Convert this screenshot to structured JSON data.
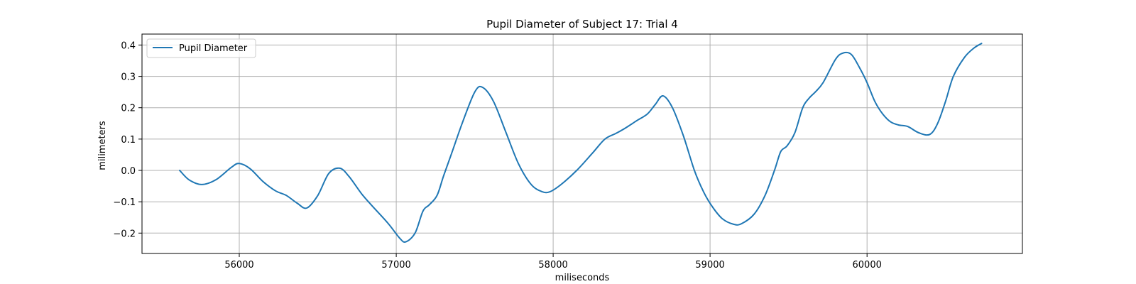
{
  "chart_data": {
    "type": "line",
    "title": "Pupil Diameter of Subject 17: Trial 4",
    "xlabel": "miliseconds",
    "ylabel": "milimeters",
    "xlim": [
      55380,
      60990
    ],
    "ylim": [
      -0.265,
      0.435
    ],
    "xticks": [
      56000,
      57000,
      58000,
      59000,
      60000
    ],
    "xtick_labels": [
      "56000",
      "57000",
      "58000",
      "59000",
      "60000"
    ],
    "yticks": [
      -0.2,
      -0.1,
      0.0,
      0.1,
      0.2,
      0.3,
      0.4
    ],
    "ytick_labels": [
      "−0.2",
      "−0.1",
      "0.0",
      "0.1",
      "0.2",
      "0.3",
      "0.4"
    ],
    "grid": true,
    "legend": {
      "position": "top-left",
      "entries": [
        "Pupil Diameter"
      ]
    },
    "series": [
      {
        "name": "Pupil Diameter",
        "color": "#1f77b4",
        "x": [
          55620,
          55680,
          55760,
          55850,
          55950,
          56000,
          56070,
          56150,
          56230,
          56300,
          56370,
          56430,
          56500,
          56570,
          56640,
          56700,
          56780,
          56850,
          56950,
          57020,
          57060,
          57120,
          57170,
          57210,
          57260,
          57300,
          57350,
          57420,
          57500,
          57550,
          57620,
          57700,
          57780,
          57860,
          57930,
          57980,
          58050,
          58150,
          58250,
          58330,
          58400,
          58460,
          58530,
          58600,
          58650,
          58700,
          58760,
          58830,
          58900,
          58960,
          59020,
          59080,
          59150,
          59200,
          59280,
          59350,
          59410,
          59450,
          59490,
          59540,
          59590,
          59630,
          59670,
          59720,
          59800,
          59850,
          59900,
          59950,
          60000,
          60050,
          60100,
          60150,
          60200,
          60260,
          60330,
          60400,
          60450,
          60500,
          60550,
          60620,
          60680,
          60730
        ],
        "y": [
          0.0,
          -0.03,
          -0.045,
          -0.03,
          0.01,
          0.022,
          0.005,
          -0.035,
          -0.065,
          -0.08,
          -0.105,
          -0.12,
          -0.08,
          -0.01,
          0.007,
          -0.02,
          -0.075,
          -0.115,
          -0.17,
          -0.215,
          -0.228,
          -0.2,
          -0.13,
          -0.11,
          -0.08,
          -0.02,
          0.05,
          0.15,
          0.25,
          0.265,
          0.22,
          0.12,
          0.02,
          -0.045,
          -0.068,
          -0.068,
          -0.045,
          0.0,
          0.055,
          0.1,
          0.118,
          0.135,
          0.158,
          0.18,
          0.21,
          0.238,
          0.2,
          0.11,
          0.0,
          -0.07,
          -0.12,
          -0.155,
          -0.172,
          -0.17,
          -0.14,
          -0.08,
          0.0,
          0.06,
          0.078,
          0.12,
          0.2,
          0.23,
          0.25,
          0.28,
          0.355,
          0.375,
          0.37,
          0.33,
          0.28,
          0.22,
          0.18,
          0.155,
          0.145,
          0.14,
          0.12,
          0.115,
          0.15,
          0.22,
          0.3,
          0.36,
          0.39,
          0.405
        ]
      }
    ]
  }
}
